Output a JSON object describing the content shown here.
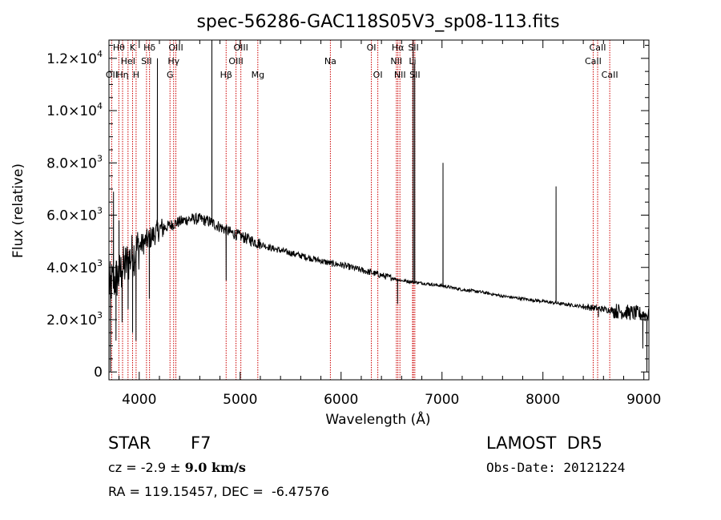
{
  "chart_data": {
    "type": "line",
    "title": "spec-56286-GAC118S05V3_sp08-113.fits",
    "xlabel": "Wavelength (Å)",
    "ylabel": "Flux (relative)",
    "xlim": [
      3700,
      9050
    ],
    "ylim": [
      -300,
      12700
    ],
    "grid": false,
    "xticks": [
      {
        "value": 4000,
        "label": "4000"
      },
      {
        "value": 5000,
        "label": "5000"
      },
      {
        "value": 6000,
        "label": "6000"
      },
      {
        "value": 7000,
        "label": "7000"
      },
      {
        "value": 8000,
        "label": "8000"
      },
      {
        "value": 9000,
        "label": "9000"
      }
    ],
    "yticks": [
      {
        "value": 0,
        "mant": "0",
        "exp": ""
      },
      {
        "value": 2000,
        "mant": "2.0×10",
        "exp": "3"
      },
      {
        "value": 4000,
        "mant": "4.0×10",
        "exp": "3"
      },
      {
        "value": 6000,
        "mant": "6.0×10",
        "exp": "3"
      },
      {
        "value": 8000,
        "mant": "8.0×10",
        "exp": "3"
      },
      {
        "value": 10000,
        "mant": "1.0×10",
        "exp": "4"
      },
      {
        "value": 12000,
        "mant": "1.2×10",
        "exp": "4"
      }
    ],
    "spectral_lines": [
      {
        "label": "OII",
        "wavelength": 3727,
        "row": 3
      },
      {
        "label": "Hθ",
        "wavelength": 3798,
        "row": 1
      },
      {
        "label": "Hη",
        "wavelength": 3835,
        "row": 3
      },
      {
        "label": "HeI",
        "wavelength": 3889,
        "row": 2
      },
      {
        "label": "K",
        "wavelength": 3934,
        "row": 1
      },
      {
        "label": "H",
        "wavelength": 3969,
        "row": 3
      },
      {
        "label": "SII",
        "wavelength": 4072,
        "row": 2
      },
      {
        "label": "Hδ",
        "wavelength": 4102,
        "row": 1
      },
      {
        "label": "G",
        "wavelength": 4305,
        "row": 3
      },
      {
        "label": "Hγ",
        "wavelength": 4341,
        "row": 2
      },
      {
        "label": "OIII",
        "wavelength": 4363,
        "row": 1
      },
      {
        "label": "Hβ",
        "wavelength": 4861,
        "row": 3
      },
      {
        "label": "OIII",
        "wavelength": 4959,
        "row": 2
      },
      {
        "label": "OIII",
        "wavelength": 5007,
        "row": 1
      },
      {
        "label": "Mg",
        "wavelength": 5175,
        "row": 3
      },
      {
        "label": "Na",
        "wavelength": 5894,
        "row": 2
      },
      {
        "label": "OI",
        "wavelength": 6300,
        "row": 1
      },
      {
        "label": "OI",
        "wavelength": 6364,
        "row": 3
      },
      {
        "label": "NII",
        "wavelength": 6548,
        "row": 2
      },
      {
        "label": "Hα",
        "wavelength": 6563,
        "row": 1
      },
      {
        "label": "NII",
        "wavelength": 6583,
        "row": 3
      },
      {
        "label": "SII",
        "wavelength": 6717,
        "row": 1
      },
      {
        "label": "Li",
        "wavelength": 6708,
        "row": 2
      },
      {
        "label": "SII",
        "wavelength": 6731,
        "row": 3
      },
      {
        "label": "CaII",
        "wavelength": 8498,
        "row": 2
      },
      {
        "label": "CaII",
        "wavelength": 8542,
        "row": 1
      },
      {
        "label": "CaII",
        "wavelength": 8662,
        "row": 3
      }
    ],
    "series": [
      {
        "continuum": [
          [
            3700,
            3300
          ],
          [
            3800,
            3700
          ],
          [
            3900,
            4300
          ],
          [
            4000,
            4800
          ],
          [
            4100,
            5100
          ],
          [
            4200,
            5450
          ],
          [
            4300,
            5600
          ],
          [
            4400,
            5750
          ],
          [
            4500,
            5850
          ],
          [
            4600,
            5850
          ],
          [
            4700,
            5750
          ],
          [
            4800,
            5550
          ],
          [
            4900,
            5350
          ],
          [
            5000,
            5200
          ],
          [
            5100,
            5050
          ],
          [
            5200,
            4900
          ],
          [
            5300,
            4750
          ],
          [
            5400,
            4650
          ],
          [
            5500,
            4550
          ],
          [
            5600,
            4450
          ],
          [
            5700,
            4350
          ],
          [
            5800,
            4250
          ],
          [
            5900,
            4150
          ],
          [
            6000,
            4100
          ],
          [
            6100,
            4000
          ],
          [
            6200,
            3900
          ],
          [
            6300,
            3800
          ],
          [
            6400,
            3700
          ],
          [
            6500,
            3600
          ],
          [
            6600,
            3500
          ],
          [
            6700,
            3450
          ],
          [
            6800,
            3400
          ],
          [
            7000,
            3300
          ],
          [
            7200,
            3150
          ],
          [
            7400,
            3050
          ],
          [
            7600,
            2900
          ],
          [
            7800,
            2800
          ],
          [
            8000,
            2700
          ],
          [
            8200,
            2600
          ],
          [
            8400,
            2500
          ],
          [
            8600,
            2400
          ],
          [
            8800,
            2300
          ],
          [
            9000,
            2200
          ],
          [
            9050,
            2150
          ]
        ],
        "features": [
          {
            "wavelength": 3715,
            "flux": 0
          },
          {
            "wavelength": 3745,
            "flux": 6900
          },
          {
            "wavelength": 3770,
            "flux": 1200
          },
          {
            "wavelength": 3800,
            "flux": 5800
          },
          {
            "wavelength": 3830,
            "flux": 1900
          },
          {
            "wavelength": 3890,
            "flux": 2400
          },
          {
            "wavelength": 3934,
            "flux": 1500
          },
          {
            "wavelength": 3968,
            "flux": 1200
          },
          {
            "wavelength": 4100,
            "flux": 2800
          },
          {
            "wavelength": 4180,
            "flux": 12000
          },
          {
            "wavelength": 4720,
            "flux": 12900
          },
          {
            "wavelength": 4861,
            "flux": 3500
          },
          {
            "wavelength": 6560,
            "flux": 2600
          },
          {
            "wavelength": 6715,
            "flux": 12700
          },
          {
            "wavelength": 6730,
            "flux": 11800
          },
          {
            "wavelength": 7010,
            "flux": 8000
          },
          {
            "wavelength": 8130,
            "flux": 7100
          },
          {
            "wavelength": 8550,
            "flux": 2100
          },
          {
            "wavelength": 8990,
            "flux": 900
          },
          {
            "wavelength": 9030,
            "flux": 0
          }
        ]
      }
    ]
  },
  "info": {
    "class_label": "STAR",
    "subclass": "F7",
    "survey": "LAMOST  DR5",
    "cz_prefix": "cz = -2.9 ± ",
    "cz_value": "9.0 km/s",
    "obs_date": "Obs-Date: 20121224",
    "coords": "RA = 119.15457, DEC =  -6.47576"
  },
  "colors": {
    "spectrum": "#000000",
    "line_marker": "#cc0000"
  }
}
